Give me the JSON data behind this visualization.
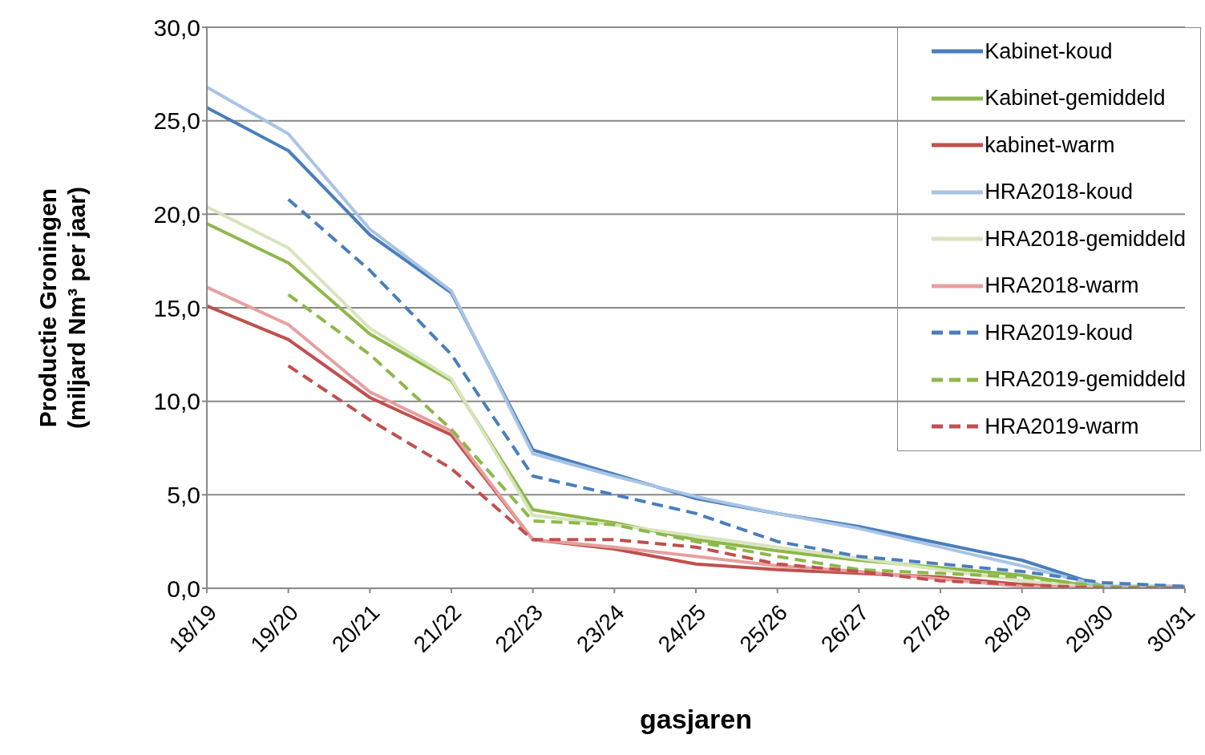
{
  "chart_data": {
    "type": "line",
    "xlabel": "gasjaren",
    "ylabel": "Productie Groningen (miljard Nm³ per jaar)",
    "categories": [
      "18/19",
      "19/20",
      "20/21",
      "21/22",
      "22/23",
      "23/24",
      "24/25",
      "25/26",
      "26/27",
      "27/28",
      "28/29",
      "29/30",
      "30/31"
    ],
    "ylim": [
      0,
      30
    ],
    "yticks": [
      {
        "value": 0,
        "label": "0,0"
      },
      {
        "value": 5,
        "label": "5,0"
      },
      {
        "value": 10,
        "label": "10,0"
      },
      {
        "value": 15,
        "label": "15,0"
      },
      {
        "value": 20,
        "label": "20,0"
      },
      {
        "value": 25,
        "label": "25,0"
      },
      {
        "value": 30,
        "label": "30,0"
      }
    ],
    "grid": "y",
    "legend": "top right",
    "marker": "none",
    "series": [
      {
        "name": "Kabinet-koud",
        "color": "#4a7ebb",
        "line_style": "solid",
        "values": [
          25.7,
          23.4,
          18.9,
          15.8,
          7.4,
          6.1,
          4.8,
          4.0,
          3.3,
          2.4,
          1.5,
          0.1,
          0.1
        ]
      },
      {
        "name": "Kabinet-gemiddeld",
        "color": "#8db84a",
        "line_style": "solid",
        "values": [
          19.5,
          17.4,
          13.6,
          11.1,
          4.2,
          3.5,
          2.6,
          2.0,
          1.5,
          1.1,
          0.7,
          0.0,
          0.0
        ]
      },
      {
        "name": "kabinet-warm",
        "color": "#c0504d",
        "line_style": "solid",
        "values": [
          15.1,
          13.3,
          10.2,
          8.2,
          2.6,
          2.1,
          1.3,
          1.0,
          0.8,
          0.6,
          0.2,
          0.0,
          0.0
        ]
      },
      {
        "name": "HRA2018-koud",
        "color": "#a9c4e4",
        "line_style": "solid",
        "values": [
          26.8,
          24.3,
          19.2,
          15.9,
          7.2,
          6.0,
          4.9,
          4.0,
          3.2,
          2.2,
          1.2,
          0.1,
          0.1
        ]
      },
      {
        "name": "HRA2018-gemiddeld",
        "color": "#d7e4bd",
        "line_style": "solid",
        "values": [
          20.4,
          18.2,
          13.9,
          11.2,
          3.9,
          3.4,
          2.8,
          2.2,
          1.6,
          1.0,
          0.4,
          0.0,
          0.0
        ]
      },
      {
        "name": "HRA2018-warm",
        "color": "#e6a0a0",
        "line_style": "solid",
        "values": [
          16.1,
          14.1,
          10.5,
          8.4,
          2.6,
          2.2,
          1.7,
          1.2,
          0.9,
          0.5,
          0.1,
          0.0,
          0.0
        ]
      },
      {
        "name": "HRA2019-koud",
        "color": "#4a7ebb",
        "line_style": "dashed",
        "values": [
          null,
          20.8,
          17.0,
          12.5,
          6.0,
          5.0,
          4.0,
          2.5,
          1.7,
          1.3,
          0.9,
          0.3,
          0.1
        ]
      },
      {
        "name": "HRA2019-gemiddeld",
        "color": "#8db84a",
        "line_style": "dashed",
        "values": [
          null,
          15.7,
          12.5,
          8.5,
          3.6,
          3.4,
          2.5,
          1.7,
          1.0,
          0.8,
          0.6,
          0.1,
          0.0
        ]
      },
      {
        "name": "HRA2019-warm",
        "color": "#c0504d",
        "line_style": "dashed",
        "values": [
          null,
          11.9,
          9.0,
          6.4,
          2.6,
          2.6,
          2.2,
          1.3,
          0.9,
          0.4,
          0.2,
          0.0,
          0.0
        ]
      }
    ]
  }
}
